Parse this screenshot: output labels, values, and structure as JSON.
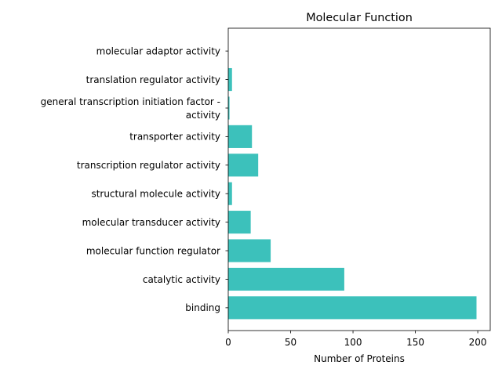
{
  "chart_data": {
    "type": "bar",
    "orientation": "horizontal",
    "title": "Molecular Function",
    "xlabel": "Number of Proteins",
    "ylabel": "",
    "xlim": [
      0,
      210
    ],
    "xticks": [
      0,
      50,
      100,
      150,
      200
    ],
    "categories": [
      "binding",
      "catalytic activity",
      "molecular function regulator",
      "molecular transducer activity",
      "structural molecule activity",
      "transcription regulator activity",
      "transporter activity",
      "general transcription initiation factor -\nactivity",
      "translation regulator activity",
      "molecular adaptor activity"
    ],
    "values": [
      199,
      93,
      34,
      18,
      3,
      24,
      19,
      1,
      3,
      0
    ],
    "bar_color": "#3cc1bb",
    "grid": false
  }
}
